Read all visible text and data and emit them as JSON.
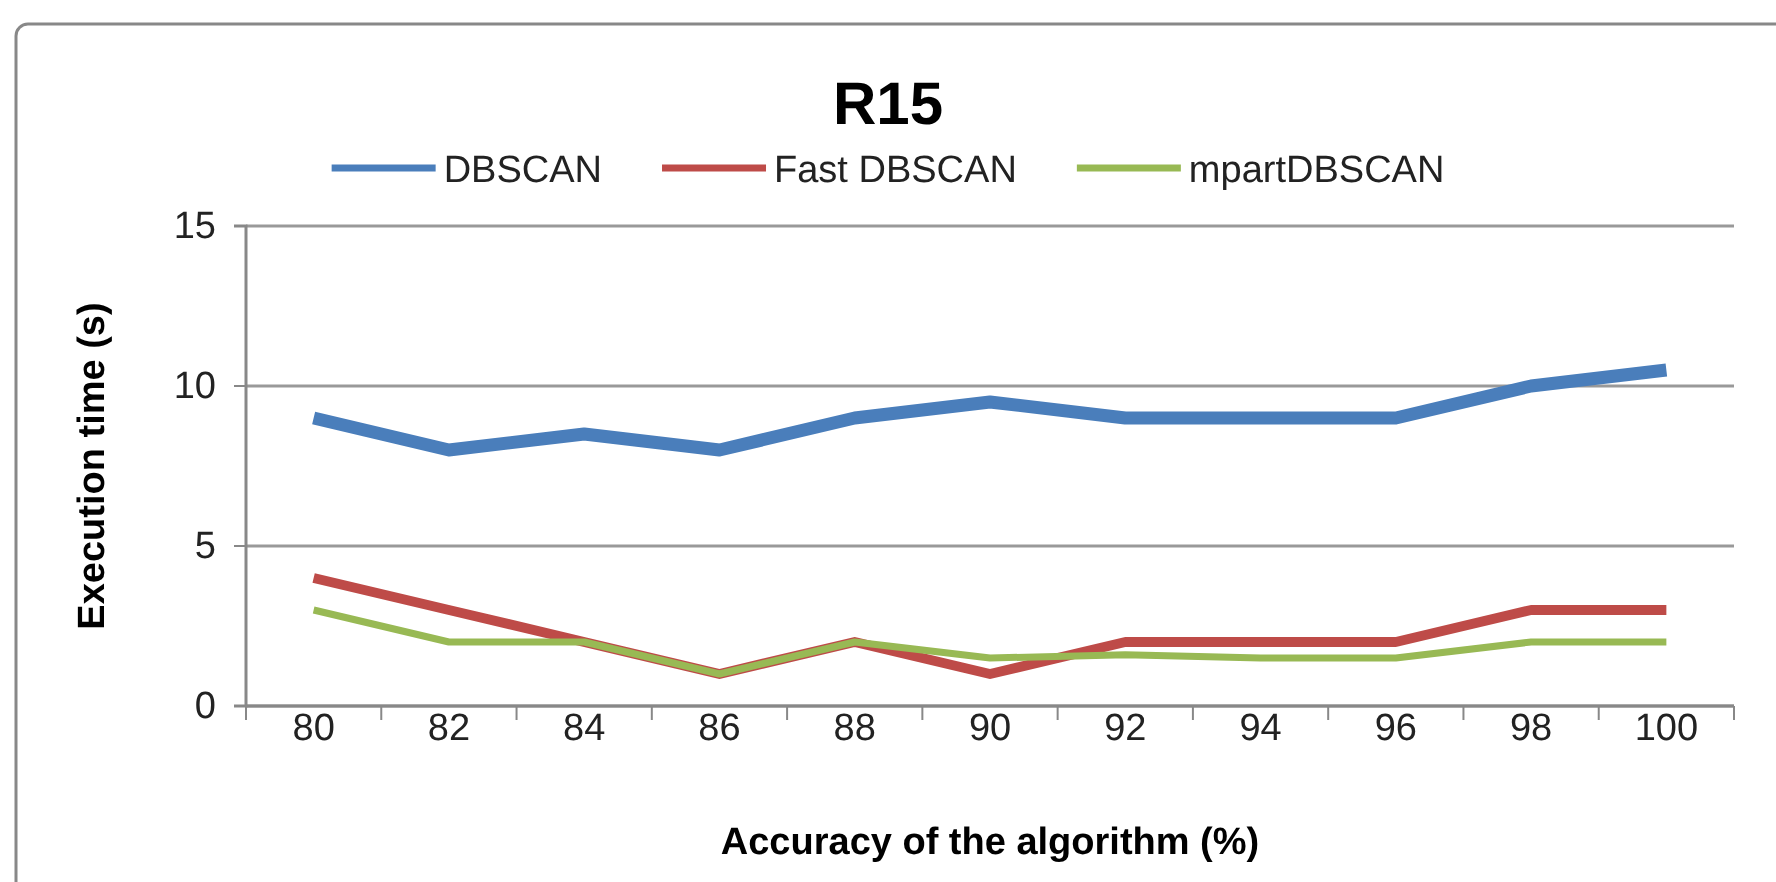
{
  "chart_data": {
    "type": "line",
    "title": "R15",
    "xlabel": "Accuracy of the algorithm (%)",
    "ylabel": "Execution time (s)",
    "categories": [
      "80",
      "82",
      "84",
      "86",
      "88",
      "90",
      "92",
      "94",
      "96",
      "98",
      "100"
    ],
    "series": [
      {
        "name": "DBSCAN",
        "color": "#4a7ebb",
        "values": [
          9,
          8,
          8.5,
          8,
          9,
          9.5,
          9,
          9,
          9,
          10,
          10.5
        ]
      },
      {
        "name": "Fast DBSCAN",
        "color": "#be4b48",
        "values": [
          4,
          3,
          2,
          1,
          2,
          1,
          2,
          2,
          2,
          3,
          3
        ]
      },
      {
        "name": "mpartDBSCAN",
        "color": "#98b954",
        "values": [
          3,
          2,
          2,
          1,
          2,
          1.5,
          1.6,
          1.5,
          1.5,
          2,
          2
        ]
      }
    ],
    "ylim": [
      0,
      15
    ],
    "yticks": [
      0,
      5,
      10,
      15
    ],
    "grid": "y",
    "legend": "top",
    "marker": "none",
    "line_style": "solid"
  }
}
